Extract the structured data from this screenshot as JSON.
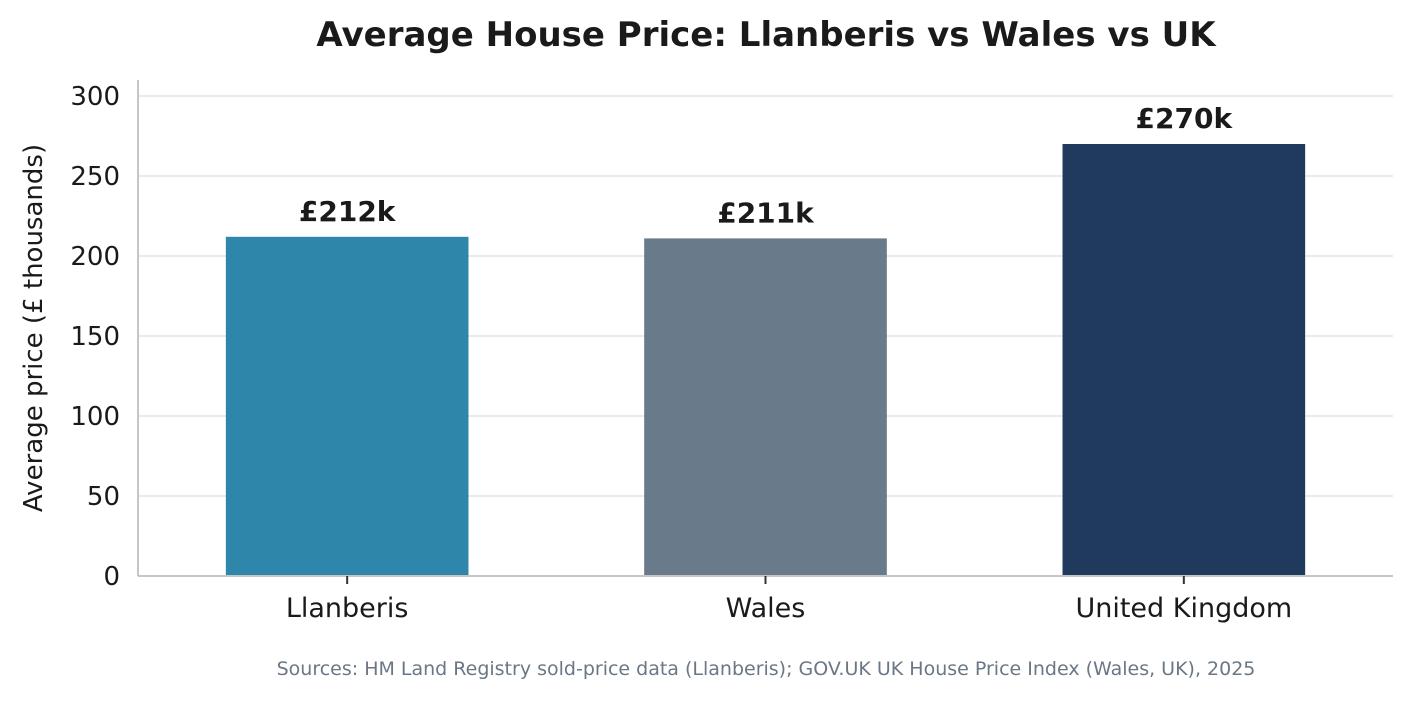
{
  "chart_data": {
    "type": "bar",
    "title": "Average House Price: Llanberis vs Wales vs UK",
    "xlabel": "",
    "ylabel": "Average price (£ thousands)",
    "ylim": [
      0,
      310
    ],
    "yticks": [
      0,
      50,
      100,
      150,
      200,
      250,
      300
    ],
    "categories": [
      "Llanberis",
      "Wales",
      "United Kingdom"
    ],
    "values": [
      212,
      211,
      270
    ],
    "data_labels": [
      "£212k",
      "£211k",
      "£270k"
    ],
    "colors": [
      "#2e86ab",
      "#697a8b",
      "#203a5e"
    ],
    "grid": "y-only",
    "legend": "none"
  },
  "footer": {
    "source_note": "Sources: HM Land Registry sold-price data (Llanberis); GOV.UK UK House Price Index (Wales, UK), 2025"
  }
}
